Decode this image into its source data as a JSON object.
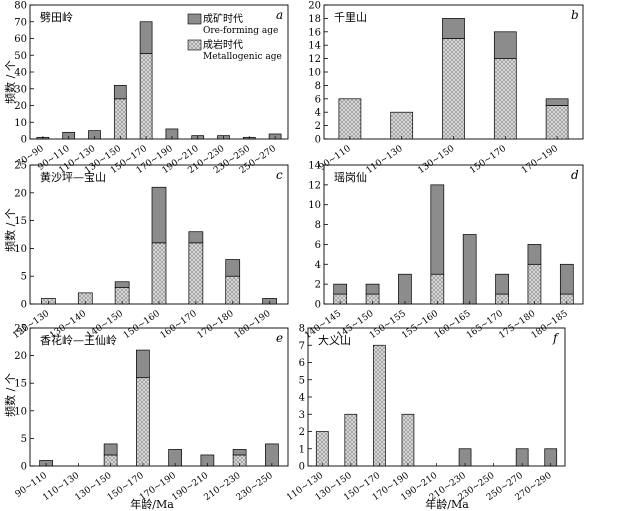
{
  "y_label": "频数 / 个",
  "x_label": "年龄/Ma",
  "legend": {
    "ore_forming": "成矿时代",
    "ore_forming_en": "Ore-forming age",
    "metallogenic": "成岩时代",
    "metallogenic_en": "Metallogenic age"
  },
  "colors": {
    "ore_forming": "#8c8c8c",
    "metallogenic": "#d8d8d8",
    "axis": "#000000"
  },
  "chart_data": [
    {
      "id": "a",
      "type": "bar",
      "stacked": true,
      "title": "劈田岭",
      "categories": [
        "70~90",
        "90~110",
        "110~130",
        "130~150",
        "150~170",
        "170~190",
        "190~210",
        "210~230",
        "230~250",
        "250~270"
      ],
      "series": [
        {
          "name": "成岩时代",
          "values": [
            0,
            0,
            0,
            24,
            51,
            0,
            0,
            0,
            0,
            0
          ]
        },
        {
          "name": "成矿时代",
          "values": [
            1,
            4,
            5,
            8,
            19,
            6,
            2,
            2,
            1,
            3
          ]
        }
      ],
      "ylim": [
        0,
        80
      ],
      "yticks": [
        0,
        10,
        20,
        30,
        40,
        50,
        60,
        70,
        80
      ]
    },
    {
      "id": "b",
      "type": "bar",
      "stacked": true,
      "title": "千里山",
      "categories": [
        "90~110",
        "110~130",
        "130~150",
        "150~170",
        "170~190"
      ],
      "series": [
        {
          "name": "成岩时代",
          "values": [
            6,
            4,
            15,
            12,
            5
          ]
        },
        {
          "name": "成矿时代",
          "values": [
            0,
            0,
            3,
            4,
            1
          ]
        }
      ],
      "ylim": [
        0,
        20
      ],
      "yticks": [
        0,
        2,
        4,
        6,
        8,
        10,
        12,
        14,
        16,
        18,
        20
      ]
    },
    {
      "id": "c",
      "type": "bar",
      "stacked": true,
      "title": "黄沙坪—宝山",
      "categories": [
        "120~130",
        "130~140",
        "140~150",
        "150~160",
        "160~170",
        "170~180",
        "180~190"
      ],
      "series": [
        {
          "name": "成岩时代",
          "values": [
            1,
            2,
            3,
            11,
            11,
            5,
            0
          ]
        },
        {
          "name": "成矿时代",
          "values": [
            0,
            0,
            1,
            10,
            2,
            3,
            1
          ]
        }
      ],
      "ylim": [
        0,
        25
      ],
      "yticks": [
        0,
        5,
        10,
        15,
        20,
        25
      ]
    },
    {
      "id": "d",
      "type": "bar",
      "stacked": true,
      "title": "瑶岗仙",
      "categories": [
        "140~145",
        "145~150",
        "150~155",
        "155~160",
        "160~165",
        "165~170",
        "175~180",
        "180~185"
      ],
      "series": [
        {
          "name": "成岩时代",
          "values": [
            1,
            1,
            0,
            3,
            0,
            1,
            4,
            1
          ]
        },
        {
          "name": "成矿时代",
          "values": [
            1,
            1,
            3,
            9,
            7,
            2,
            2,
            3
          ]
        }
      ],
      "ylim": [
        0,
        14
      ],
      "yticks": [
        0,
        2,
        4,
        6,
        8,
        10,
        12,
        14
      ]
    },
    {
      "id": "e",
      "type": "bar",
      "stacked": true,
      "title": "香花岭—王仙岭",
      "categories": [
        "90~110",
        "110~130",
        "130~150",
        "150~170",
        "170~190",
        "190~210",
        "210~230",
        "230~250"
      ],
      "series": [
        {
          "name": "成岩时代",
          "values": [
            0,
            0,
            2,
            16,
            0,
            0,
            2,
            0
          ]
        },
        {
          "name": "成矿时代",
          "values": [
            1,
            0,
            2,
            5,
            3,
            2,
            1,
            4
          ]
        }
      ],
      "ylim": [
        0,
        25
      ],
      "yticks": [
        0,
        5,
        10,
        15,
        20,
        25
      ]
    },
    {
      "id": "f",
      "type": "bar",
      "stacked": true,
      "title": "大义山",
      "categories": [
        "110~130",
        "130~150",
        "150~170",
        "170~190",
        "190~210",
        "210~230",
        "230~250",
        "250~270",
        "270~290"
      ],
      "series": [
        {
          "name": "成岩时代",
          "values": [
            2,
            3,
            7,
            3,
            0,
            0,
            0,
            0,
            0
          ]
        },
        {
          "name": "成矿时代",
          "values": [
            0,
            0,
            0,
            0,
            0,
            1,
            0,
            1,
            1
          ]
        }
      ],
      "ylim": [
        0,
        8
      ],
      "yticks": [
        0,
        1,
        2,
        3,
        4,
        5,
        6,
        7,
        8
      ]
    }
  ]
}
